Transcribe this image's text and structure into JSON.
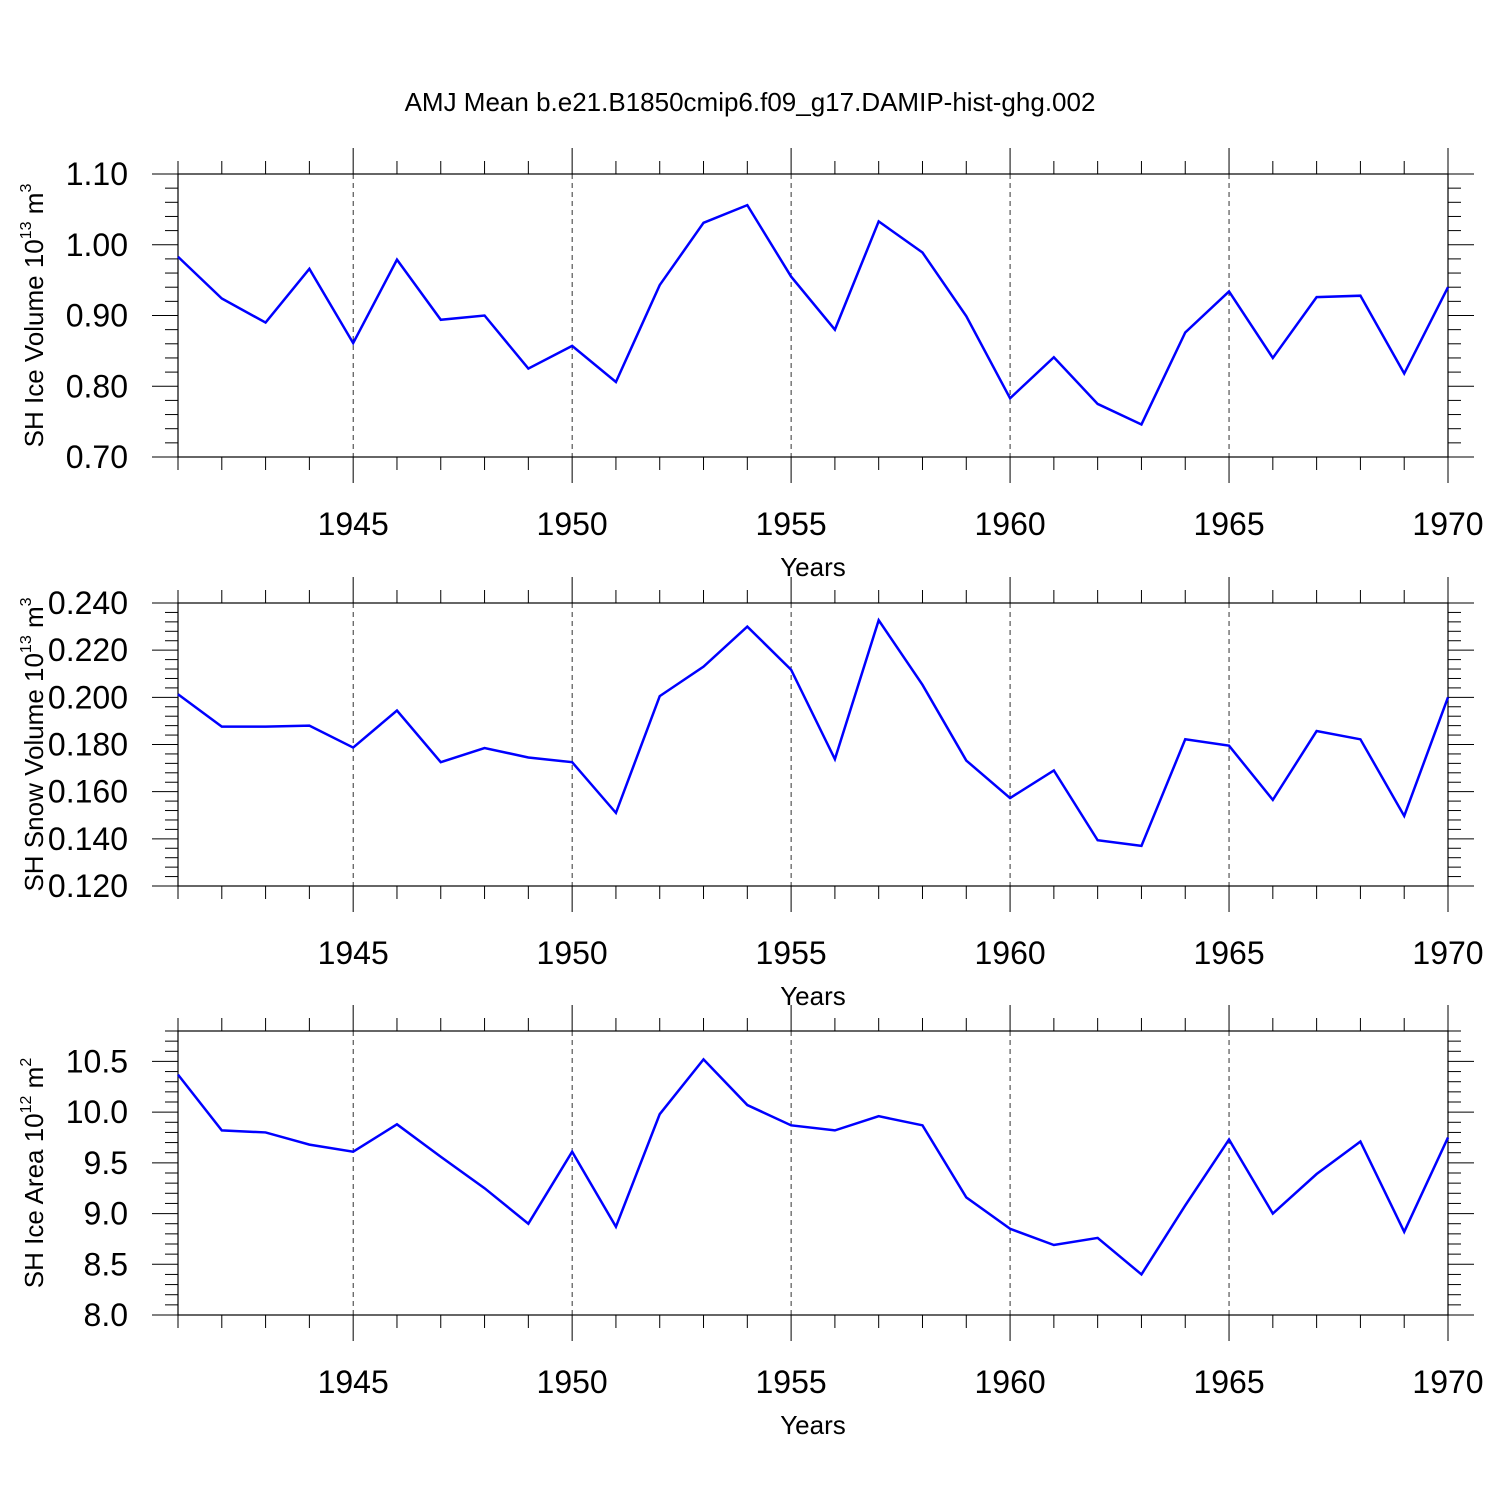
{
  "chart_data": {
    "type": "line",
    "title": "AMJ Mean b.e21.B1850cmip6.f09_g17.DAMIP-hist-ghg.002",
    "line_color": "#0000ff",
    "x": [
      1941,
      1942,
      1943,
      1944,
      1945,
      1946,
      1947,
      1948,
      1949,
      1950,
      1951,
      1952,
      1953,
      1954,
      1955,
      1956,
      1957,
      1958,
      1959,
      1960,
      1961,
      1962,
      1963,
      1964,
      1965,
      1966,
      1967,
      1968,
      1969,
      1970
    ],
    "xlim": [
      1941,
      1970
    ],
    "xticks": [
      1945,
      1950,
      1955,
      1960,
      1965,
      1970
    ],
    "panels": [
      {
        "id": "ice-volume",
        "xlabel": "Years",
        "ylabel_main": "SH Ice Volume 10",
        "ylabel_exp": "13",
        "ylabel_unit": " m",
        "ylabel_unit_exp": "3",
        "ylim": [
          0.7,
          1.1
        ],
        "yticks": [
          "0.70",
          "0.80",
          "0.90",
          "1.00",
          "1.10"
        ],
        "values": [
          0.983,
          0.924,
          0.89,
          0.966,
          0.861,
          0.979,
          0.894,
          0.9,
          0.825,
          0.857,
          0.806,
          0.943,
          1.031,
          1.056,
          0.955,
          0.88,
          1.033,
          0.989,
          0.899,
          0.783,
          0.841,
          0.775,
          0.746,
          0.876,
          0.934,
          0.84,
          0.926,
          0.928,
          0.818,
          0.94
        ]
      },
      {
        "id": "snow-volume",
        "xlabel": "Years",
        "ylabel_main": "SH Snow Volume 10",
        "ylabel_exp": "13",
        "ylabel_unit": " m",
        "ylabel_unit_exp": "3",
        "ylim": [
          0.12,
          0.24
        ],
        "yticks": [
          "0.120",
          "0.140",
          "0.160",
          "0.180",
          "0.200",
          "0.220",
          "0.240"
        ],
        "values": [
          0.2013,
          0.1876,
          0.1876,
          0.188,
          0.1787,
          0.1944,
          0.1725,
          0.1785,
          0.1745,
          0.1725,
          0.151,
          0.2005,
          0.213,
          0.23,
          0.2117,
          0.1738,
          0.2327,
          0.2053,
          0.1732,
          0.1573,
          0.169,
          0.1394,
          0.137,
          0.1822,
          0.1795,
          0.1565,
          0.1857,
          0.1822,
          0.1497,
          0.2
        ]
      },
      {
        "id": "ice-area",
        "xlabel": "Years",
        "ylabel_main": "SH Ice Area 10",
        "ylabel_exp": "12",
        "ylabel_unit": " m",
        "ylabel_unit_exp": "2",
        "ylim": [
          8.0,
          10.8
        ],
        "yticks": [
          "8.0",
          "8.5",
          "9.0",
          "9.5",
          "10.0",
          "10.5"
        ],
        "values": [
          10.37,
          9.82,
          9.8,
          9.68,
          9.61,
          9.88,
          9.56,
          9.25,
          8.9,
          9.61,
          8.87,
          9.98,
          10.52,
          10.07,
          9.87,
          9.82,
          9.96,
          9.87,
          9.16,
          8.85,
          8.69,
          8.76,
          8.4,
          9.08,
          9.73,
          9.0,
          9.39,
          9.71,
          8.82,
          9.75
        ]
      }
    ]
  }
}
